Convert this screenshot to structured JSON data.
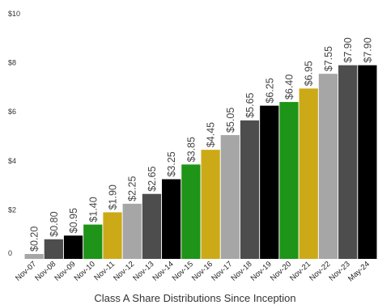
{
  "chart_data": {
    "type": "bar",
    "title": "Class A Share Distributions Since Inception",
    "xlabel": "",
    "ylabel": "",
    "ylim": [
      0,
      10
    ],
    "yticks": [
      {
        "value": 0,
        "label": "0"
      },
      {
        "value": 2,
        "label": "$2"
      },
      {
        "value": 4,
        "label": "$4"
      },
      {
        "value": 6,
        "label": "$6"
      },
      {
        "value": 8,
        "label": "$8"
      },
      {
        "value": 10,
        "label": "$10"
      }
    ],
    "grid": false,
    "legend": "none",
    "categories": [
      "Nov-07",
      "Nov-08",
      "Nov-09",
      "Nov-10",
      "Nov-11",
      "Nov-12",
      "Nov-13",
      "Nov-14",
      "Nov-15",
      "Nov-16",
      "Nov-17",
      "Nov-18",
      "Nov-19",
      "Nov-20",
      "Nov-21",
      "Nov-22",
      "Nov-23",
      "May-24"
    ],
    "values": [
      0.2,
      0.8,
      0.95,
      1.4,
      1.9,
      2.25,
      2.65,
      3.25,
      3.85,
      4.45,
      5.05,
      5.65,
      6.25,
      6.4,
      6.95,
      7.55,
      7.9,
      7.9
    ],
    "value_labels": [
      "$0.20",
      "$0.80",
      "$0.95",
      "$1.40",
      "$1.90",
      "$2.25",
      "$2.65",
      "$3.25",
      "$3.85",
      "$4.45",
      "$5.05",
      "$5.65",
      "$6.25",
      "$6.40",
      "$6.95",
      "$7.55",
      "$7.90",
      "$7.90"
    ],
    "bar_colors": [
      "#a6a6a6",
      "#4d4d4d",
      "#000000",
      "#1e9418",
      "#ccaa17",
      "#a6a6a6",
      "#4d4d4d",
      "#000000",
      "#1e9418",
      "#ccaa17",
      "#a6a6a6",
      "#4d4d4d",
      "#000000",
      "#1e9418",
      "#ccaa17",
      "#a6a6a6",
      "#4d4d4d",
      "#000000"
    ]
  }
}
